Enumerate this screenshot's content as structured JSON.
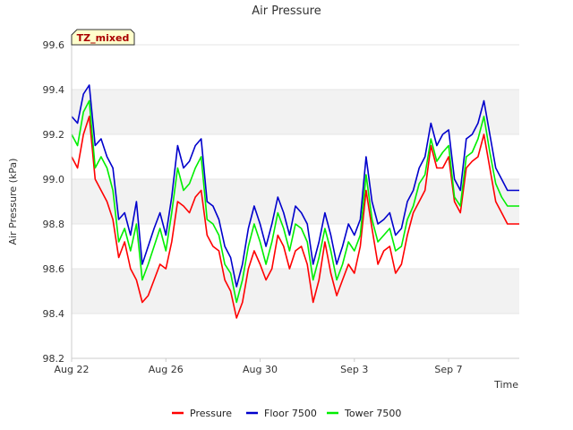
{
  "chart_data": {
    "type": "line",
    "title": "Air Pressure",
    "xlabel": "Time",
    "ylabel": "Air Pressure (kPa)",
    "annotation": "TZ_mixed",
    "xlim": [
      "2023-08-22",
      "2023-09-10"
    ],
    "ylim": [
      98.2,
      99.6
    ],
    "yticks": [
      98.2,
      98.4,
      98.6,
      98.8,
      99.0,
      99.2,
      99.4,
      99.6
    ],
    "xticks": [
      {
        "date": "2023-08-22",
        "label": "Aug 22"
      },
      {
        "date": "2023-08-26",
        "label": "Aug 26"
      },
      {
        "date": "2023-08-30",
        "label": "Aug 30"
      },
      {
        "date": "2023-09-03",
        "label": "Sep 3"
      },
      {
        "date": "2023-09-07",
        "label": "Sep 7"
      }
    ],
    "grid": true,
    "legend_position": "bottom",
    "x": [
      "2023-08-22 00:00",
      "2023-08-22 06:00",
      "2023-08-22 12:00",
      "2023-08-22 18:00",
      "2023-08-23 00:00",
      "2023-08-23 06:00",
      "2023-08-23 12:00",
      "2023-08-23 18:00",
      "2023-08-24 00:00",
      "2023-08-24 06:00",
      "2023-08-24 12:00",
      "2023-08-24 18:00",
      "2023-08-25 00:00",
      "2023-08-25 06:00",
      "2023-08-25 12:00",
      "2023-08-25 18:00",
      "2023-08-26 00:00",
      "2023-08-26 06:00",
      "2023-08-26 12:00",
      "2023-08-26 18:00",
      "2023-08-27 00:00",
      "2023-08-27 06:00",
      "2023-08-27 12:00",
      "2023-08-27 18:00",
      "2023-08-28 00:00",
      "2023-08-28 06:00",
      "2023-08-28 12:00",
      "2023-08-28 18:00",
      "2023-08-29 00:00",
      "2023-08-29 06:00",
      "2023-08-29 12:00",
      "2023-08-29 18:00",
      "2023-08-30 00:00",
      "2023-08-30 06:00",
      "2023-08-30 12:00",
      "2023-08-30 18:00",
      "2023-08-31 00:00",
      "2023-08-31 06:00",
      "2023-08-31 12:00",
      "2023-08-31 18:00",
      "2023-09-01 00:00",
      "2023-09-01 06:00",
      "2023-09-01 12:00",
      "2023-09-01 18:00",
      "2023-09-02 00:00",
      "2023-09-02 06:00",
      "2023-09-02 12:00",
      "2023-09-02 18:00",
      "2023-09-03 00:00",
      "2023-09-03 06:00",
      "2023-09-03 12:00",
      "2023-09-03 18:00",
      "2023-09-04 00:00",
      "2023-09-04 06:00",
      "2023-09-04 12:00",
      "2023-09-04 18:00",
      "2023-09-05 00:00",
      "2023-09-05 06:00",
      "2023-09-05 12:00",
      "2023-09-05 18:00",
      "2023-09-06 00:00",
      "2023-09-06 06:00",
      "2023-09-06 12:00",
      "2023-09-06 18:00",
      "2023-09-07 00:00",
      "2023-09-07 06:00",
      "2023-09-07 12:00",
      "2023-09-07 18:00",
      "2023-09-08 00:00",
      "2023-09-08 06:00",
      "2023-09-08 12:00",
      "2023-09-08 18:00",
      "2023-09-09 00:00",
      "2023-09-09 06:00",
      "2023-09-09 12:00",
      "2023-09-09 18:00",
      "2023-09-10 00:00"
    ],
    "series": [
      {
        "name": "Pressure",
        "color": "#ff0000",
        "values": [
          99.1,
          99.05,
          99.2,
          99.28,
          99.0,
          98.95,
          98.9,
          98.82,
          98.65,
          98.72,
          98.6,
          98.55,
          98.45,
          98.48,
          98.55,
          98.62,
          98.6,
          98.72,
          98.9,
          98.88,
          98.85,
          98.92,
          98.95,
          98.75,
          98.7,
          98.68,
          98.55,
          98.5,
          98.38,
          98.45,
          98.6,
          98.68,
          98.62,
          98.55,
          98.6,
          98.75,
          98.7,
          98.6,
          98.68,
          98.7,
          98.62,
          98.45,
          98.55,
          98.72,
          98.58,
          98.48,
          98.55,
          98.62,
          98.58,
          98.7,
          98.95,
          98.78,
          98.62,
          98.68,
          98.7,
          98.58,
          98.62,
          98.75,
          98.85,
          98.9,
          98.95,
          99.15,
          99.05,
          99.05,
          99.1,
          98.9,
          98.85,
          99.05,
          99.08,
          99.1,
          99.2,
          99.05,
          98.9,
          98.85,
          98.8,
          98.8,
          98.8
        ]
      },
      {
        "name": "Floor 7500",
        "color": "#0000cc",
        "values": [
          99.28,
          99.25,
          99.38,
          99.42,
          99.15,
          99.18,
          99.1,
          99.05,
          98.82,
          98.85,
          98.75,
          98.9,
          98.62,
          98.7,
          98.78,
          98.85,
          98.75,
          98.92,
          99.15,
          99.05,
          99.08,
          99.15,
          99.18,
          98.9,
          98.88,
          98.82,
          98.7,
          98.65,
          98.52,
          98.62,
          98.78,
          98.88,
          98.8,
          98.7,
          98.8,
          98.92,
          98.85,
          98.75,
          98.88,
          98.85,
          98.8,
          98.62,
          98.72,
          98.85,
          98.75,
          98.62,
          98.7,
          98.8,
          98.75,
          98.82,
          99.1,
          98.9,
          98.8,
          98.82,
          98.85,
          98.75,
          98.78,
          98.9,
          98.95,
          99.05,
          99.1,
          99.25,
          99.15,
          99.2,
          99.22,
          99.0,
          98.95,
          99.18,
          99.2,
          99.25,
          99.35,
          99.2,
          99.05,
          99.0,
          98.95,
          98.95,
          98.95
        ]
      },
      {
        "name": "Tower 7500",
        "color": "#00ee00",
        "values": [
          99.2,
          99.15,
          99.3,
          99.35,
          99.05,
          99.1,
          99.05,
          98.95,
          98.72,
          98.78,
          98.68,
          98.8,
          98.55,
          98.62,
          98.7,
          98.78,
          98.68,
          98.85,
          99.05,
          98.95,
          98.98,
          99.05,
          99.1,
          98.82,
          98.8,
          98.75,
          98.62,
          98.58,
          98.45,
          98.55,
          98.7,
          98.8,
          98.72,
          98.62,
          98.72,
          98.85,
          98.78,
          98.68,
          98.8,
          98.78,
          98.72,
          98.55,
          98.65,
          98.78,
          98.68,
          98.55,
          98.62,
          98.72,
          98.68,
          98.75,
          99.02,
          98.82,
          98.72,
          98.75,
          98.78,
          98.68,
          98.7,
          98.82,
          98.88,
          98.98,
          99.02,
          99.18,
          99.08,
          99.12,
          99.15,
          98.92,
          98.88,
          99.1,
          99.12,
          99.18,
          99.28,
          99.12,
          98.98,
          98.92,
          98.88,
          98.88,
          98.88
        ]
      }
    ]
  }
}
